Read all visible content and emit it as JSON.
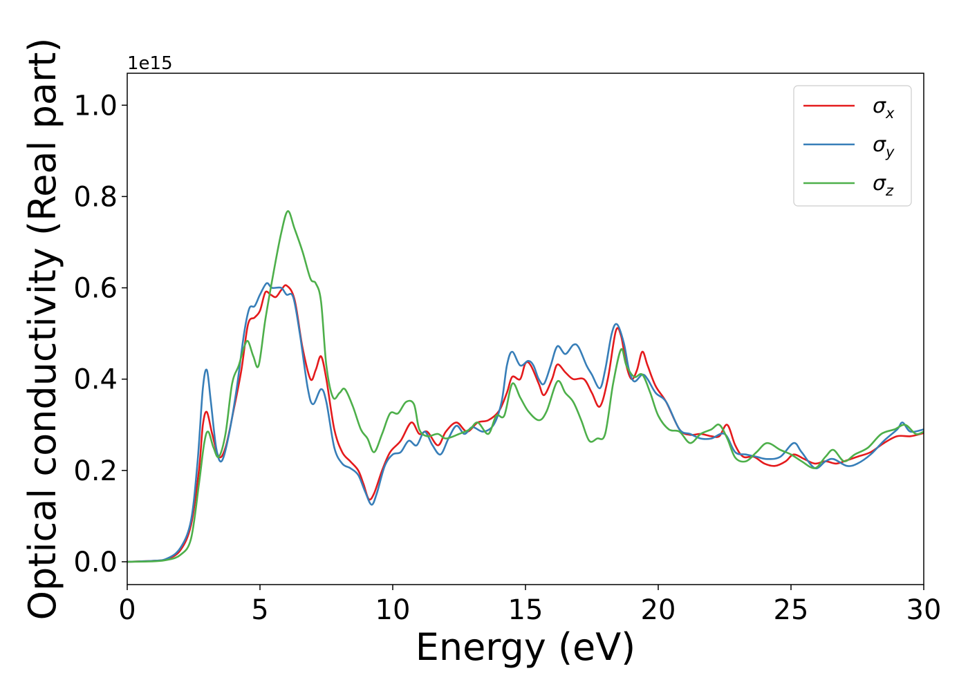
{
  "chart_data": {
    "type": "line",
    "xlabel": "Energy (eV)",
    "ylabel": "Optical conductivity (Real part)",
    "y_offset_text": "1e15",
    "y_multiplier": 1000000000000000.0,
    "xlim": [
      0,
      30
    ],
    "ylim": [
      -0.05,
      1.07
    ],
    "x_ticks": [
      0,
      5,
      10,
      15,
      20,
      25,
      30
    ],
    "y_ticks": [
      0.0,
      0.2,
      0.4,
      0.6,
      0.8,
      1.0
    ],
    "x_tick_labels": [
      "0",
      "5",
      "10",
      "15",
      "20",
      "25",
      "30"
    ],
    "y_tick_labels": [
      "0.0",
      "0.2",
      "0.4",
      "0.6",
      "0.8",
      "1.0"
    ],
    "grid": false,
    "legend_position": "top-right",
    "series": [
      {
        "name": "σx",
        "symbol": "σ",
        "subscript": "x",
        "color": "#e41a1c",
        "points": [
          [
            0,
            0
          ],
          [
            1,
            0.002
          ],
          [
            1.5,
            0.006
          ],
          [
            2,
            0.025
          ],
          [
            2.4,
            0.08
          ],
          [
            2.7,
            0.2
          ],
          [
            2.85,
            0.3
          ],
          [
            3.0,
            0.328
          ],
          [
            3.2,
            0.28
          ],
          [
            3.45,
            0.23
          ],
          [
            3.7,
            0.25
          ],
          [
            4.0,
            0.33
          ],
          [
            4.3,
            0.42
          ],
          [
            4.55,
            0.52
          ],
          [
            4.8,
            0.535
          ],
          [
            5.0,
            0.55
          ],
          [
            5.2,
            0.59
          ],
          [
            5.4,
            0.585
          ],
          [
            5.6,
            0.58
          ],
          [
            5.8,
            0.595
          ],
          [
            6.0,
            0.605
          ],
          [
            6.3,
            0.575
          ],
          [
            6.6,
            0.47
          ],
          [
            6.9,
            0.4
          ],
          [
            7.1,
            0.42
          ],
          [
            7.3,
            0.45
          ],
          [
            7.5,
            0.4
          ],
          [
            7.8,
            0.29
          ],
          [
            8.1,
            0.24
          ],
          [
            8.4,
            0.22
          ],
          [
            8.7,
            0.2
          ],
          [
            8.9,
            0.17
          ],
          [
            9.1,
            0.137
          ],
          [
            9.3,
            0.15
          ],
          [
            9.6,
            0.2
          ],
          [
            9.9,
            0.24
          ],
          [
            10.3,
            0.265
          ],
          [
            10.7,
            0.305
          ],
          [
            11.0,
            0.28
          ],
          [
            11.3,
            0.285
          ],
          [
            11.7,
            0.255
          ],
          [
            12.0,
            0.285
          ],
          [
            12.4,
            0.305
          ],
          [
            12.8,
            0.285
          ],
          [
            13.2,
            0.305
          ],
          [
            13.6,
            0.31
          ],
          [
            14.0,
            0.33
          ],
          [
            14.3,
            0.37
          ],
          [
            14.5,
            0.405
          ],
          [
            14.8,
            0.4
          ],
          [
            15.0,
            0.435
          ],
          [
            15.2,
            0.43
          ],
          [
            15.5,
            0.39
          ],
          [
            15.7,
            0.365
          ],
          [
            16.0,
            0.4
          ],
          [
            16.2,
            0.432
          ],
          [
            16.5,
            0.415
          ],
          [
            16.8,
            0.4
          ],
          [
            17.2,
            0.4
          ],
          [
            17.5,
            0.37
          ],
          [
            17.8,
            0.34
          ],
          [
            18.1,
            0.4
          ],
          [
            18.4,
            0.505
          ],
          [
            18.6,
            0.495
          ],
          [
            18.8,
            0.43
          ],
          [
            19.0,
            0.4
          ],
          [
            19.2,
            0.42
          ],
          [
            19.4,
            0.46
          ],
          [
            19.6,
            0.43
          ],
          [
            19.9,
            0.385
          ],
          [
            20.3,
            0.35
          ],
          [
            20.8,
            0.29
          ],
          [
            21.2,
            0.278
          ],
          [
            21.6,
            0.28
          ],
          [
            22.0,
            0.275
          ],
          [
            22.3,
            0.275
          ],
          [
            22.6,
            0.3
          ],
          [
            22.9,
            0.255
          ],
          [
            23.2,
            0.23
          ],
          [
            23.6,
            0.23
          ],
          [
            24.0,
            0.215
          ],
          [
            24.4,
            0.21
          ],
          [
            24.8,
            0.22
          ],
          [
            25.1,
            0.235
          ],
          [
            25.5,
            0.225
          ],
          [
            25.9,
            0.215
          ],
          [
            26.3,
            0.22
          ],
          [
            26.7,
            0.215
          ],
          [
            27.1,
            0.222
          ],
          [
            27.5,
            0.23
          ],
          [
            28.0,
            0.24
          ],
          [
            28.5,
            0.26
          ],
          [
            29.0,
            0.275
          ],
          [
            29.5,
            0.275
          ],
          [
            30,
            0.282
          ]
        ]
      },
      {
        "name": "σy",
        "symbol": "σ",
        "subscript": "y",
        "color": "#377eb8",
        "points": [
          [
            0,
            0
          ],
          [
            1,
            0.002
          ],
          [
            1.5,
            0.007
          ],
          [
            2,
            0.03
          ],
          [
            2.4,
            0.09
          ],
          [
            2.65,
            0.22
          ],
          [
            2.85,
            0.38
          ],
          [
            3.0,
            0.42
          ],
          [
            3.15,
            0.35
          ],
          [
            3.35,
            0.25
          ],
          [
            3.55,
            0.22
          ],
          [
            3.8,
            0.27
          ],
          [
            4.1,
            0.37
          ],
          [
            4.4,
            0.5
          ],
          [
            4.6,
            0.555
          ],
          [
            4.8,
            0.56
          ],
          [
            5.0,
            0.585
          ],
          [
            5.25,
            0.61
          ],
          [
            5.45,
            0.6
          ],
          [
            5.8,
            0.6
          ],
          [
            6.0,
            0.585
          ],
          [
            6.25,
            0.58
          ],
          [
            6.5,
            0.5
          ],
          [
            6.8,
            0.38
          ],
          [
            7.0,
            0.345
          ],
          [
            7.3,
            0.378
          ],
          [
            7.5,
            0.35
          ],
          [
            7.8,
            0.25
          ],
          [
            8.1,
            0.215
          ],
          [
            8.4,
            0.205
          ],
          [
            8.7,
            0.19
          ],
          [
            8.95,
            0.155
          ],
          [
            9.2,
            0.125
          ],
          [
            9.4,
            0.15
          ],
          [
            9.7,
            0.21
          ],
          [
            10.0,
            0.235
          ],
          [
            10.3,
            0.24
          ],
          [
            10.6,
            0.265
          ],
          [
            10.9,
            0.255
          ],
          [
            11.2,
            0.285
          ],
          [
            11.5,
            0.255
          ],
          [
            11.8,
            0.235
          ],
          [
            12.1,
            0.27
          ],
          [
            12.4,
            0.298
          ],
          [
            12.7,
            0.28
          ],
          [
            13.0,
            0.295
          ],
          [
            13.4,
            0.285
          ],
          [
            13.8,
            0.3
          ],
          [
            14.1,
            0.35
          ],
          [
            14.3,
            0.43
          ],
          [
            14.5,
            0.46
          ],
          [
            14.8,
            0.43
          ],
          [
            15.1,
            0.44
          ],
          [
            15.3,
            0.43
          ],
          [
            15.5,
            0.4
          ],
          [
            15.7,
            0.39
          ],
          [
            15.95,
            0.43
          ],
          [
            16.2,
            0.472
          ],
          [
            16.5,
            0.455
          ],
          [
            16.8,
            0.475
          ],
          [
            17.0,
            0.47
          ],
          [
            17.3,
            0.43
          ],
          [
            17.5,
            0.41
          ],
          [
            17.8,
            0.38
          ],
          [
            18.0,
            0.42
          ],
          [
            18.25,
            0.5
          ],
          [
            18.45,
            0.52
          ],
          [
            18.7,
            0.48
          ],
          [
            18.9,
            0.42
          ],
          [
            19.1,
            0.395
          ],
          [
            19.4,
            0.41
          ],
          [
            19.6,
            0.4
          ],
          [
            19.9,
            0.37
          ],
          [
            20.3,
            0.35
          ],
          [
            20.8,
            0.29
          ],
          [
            21.2,
            0.28
          ],
          [
            21.6,
            0.27
          ],
          [
            22.0,
            0.27
          ],
          [
            22.5,
            0.28
          ],
          [
            22.9,
            0.24
          ],
          [
            23.3,
            0.235
          ],
          [
            23.7,
            0.23
          ],
          [
            24.1,
            0.225
          ],
          [
            24.6,
            0.23
          ],
          [
            25.1,
            0.26
          ],
          [
            25.4,
            0.24
          ],
          [
            25.9,
            0.205
          ],
          [
            26.3,
            0.22
          ],
          [
            26.6,
            0.225
          ],
          [
            27.1,
            0.21
          ],
          [
            27.5,
            0.215
          ],
          [
            28.0,
            0.235
          ],
          [
            28.5,
            0.265
          ],
          [
            29.0,
            0.29
          ],
          [
            29.2,
            0.305
          ],
          [
            29.5,
            0.285
          ],
          [
            30,
            0.29
          ]
        ]
      },
      {
        "name": "σz",
        "symbol": "σ",
        "subscript": "z",
        "color": "#4daf4a",
        "points": [
          [
            0,
            0
          ],
          [
            1,
            0.001
          ],
          [
            1.5,
            0.004
          ],
          [
            2,
            0.015
          ],
          [
            2.4,
            0.05
          ],
          [
            2.7,
            0.17
          ],
          [
            2.9,
            0.26
          ],
          [
            3.05,
            0.285
          ],
          [
            3.25,
            0.25
          ],
          [
            3.45,
            0.23
          ],
          [
            3.7,
            0.28
          ],
          [
            3.95,
            0.39
          ],
          [
            4.2,
            0.43
          ],
          [
            4.4,
            0.47
          ],
          [
            4.55,
            0.483
          ],
          [
            4.75,
            0.45
          ],
          [
            4.95,
            0.43
          ],
          [
            5.2,
            0.53
          ],
          [
            5.5,
            0.63
          ],
          [
            5.8,
            0.72
          ],
          [
            6.05,
            0.768
          ],
          [
            6.3,
            0.73
          ],
          [
            6.6,
            0.68
          ],
          [
            6.9,
            0.62
          ],
          [
            7.1,
            0.61
          ],
          [
            7.3,
            0.57
          ],
          [
            7.5,
            0.43
          ],
          [
            7.75,
            0.36
          ],
          [
            8.0,
            0.37
          ],
          [
            8.2,
            0.378
          ],
          [
            8.5,
            0.34
          ],
          [
            8.8,
            0.29
          ],
          [
            9.05,
            0.27
          ],
          [
            9.3,
            0.24
          ],
          [
            9.6,
            0.28
          ],
          [
            9.9,
            0.325
          ],
          [
            10.2,
            0.325
          ],
          [
            10.5,
            0.35
          ],
          [
            10.8,
            0.345
          ],
          [
            11.0,
            0.29
          ],
          [
            11.3,
            0.275
          ],
          [
            11.7,
            0.28
          ],
          [
            12.0,
            0.27
          ],
          [
            12.5,
            0.28
          ],
          [
            12.9,
            0.29
          ],
          [
            13.2,
            0.305
          ],
          [
            13.6,
            0.28
          ],
          [
            13.9,
            0.32
          ],
          [
            14.2,
            0.32
          ],
          [
            14.5,
            0.39
          ],
          [
            14.8,
            0.36
          ],
          [
            15.1,
            0.33
          ],
          [
            15.5,
            0.31
          ],
          [
            15.8,
            0.33
          ],
          [
            16.2,
            0.395
          ],
          [
            16.5,
            0.37
          ],
          [
            16.8,
            0.35
          ],
          [
            17.1,
            0.31
          ],
          [
            17.4,
            0.265
          ],
          [
            17.7,
            0.27
          ],
          [
            18.0,
            0.28
          ],
          [
            18.3,
            0.39
          ],
          [
            18.6,
            0.465
          ],
          [
            18.8,
            0.43
          ],
          [
            19.1,
            0.405
          ],
          [
            19.4,
            0.41
          ],
          [
            19.7,
            0.37
          ],
          [
            20.0,
            0.32
          ],
          [
            20.4,
            0.29
          ],
          [
            20.8,
            0.285
          ],
          [
            21.2,
            0.26
          ],
          [
            21.6,
            0.28
          ],
          [
            22.0,
            0.29
          ],
          [
            22.3,
            0.3
          ],
          [
            22.6,
            0.27
          ],
          [
            22.9,
            0.228
          ],
          [
            23.3,
            0.22
          ],
          [
            23.7,
            0.24
          ],
          [
            24.1,
            0.26
          ],
          [
            24.6,
            0.245
          ],
          [
            25.0,
            0.235
          ],
          [
            25.4,
            0.22
          ],
          [
            25.9,
            0.205
          ],
          [
            26.3,
            0.23
          ],
          [
            26.6,
            0.245
          ],
          [
            27.0,
            0.22
          ],
          [
            27.4,
            0.235
          ],
          [
            27.9,
            0.25
          ],
          [
            28.4,
            0.28
          ],
          [
            28.9,
            0.29
          ],
          [
            29.3,
            0.3
          ],
          [
            29.7,
            0.28
          ],
          [
            30,
            0.285
          ]
        ]
      }
    ]
  }
}
